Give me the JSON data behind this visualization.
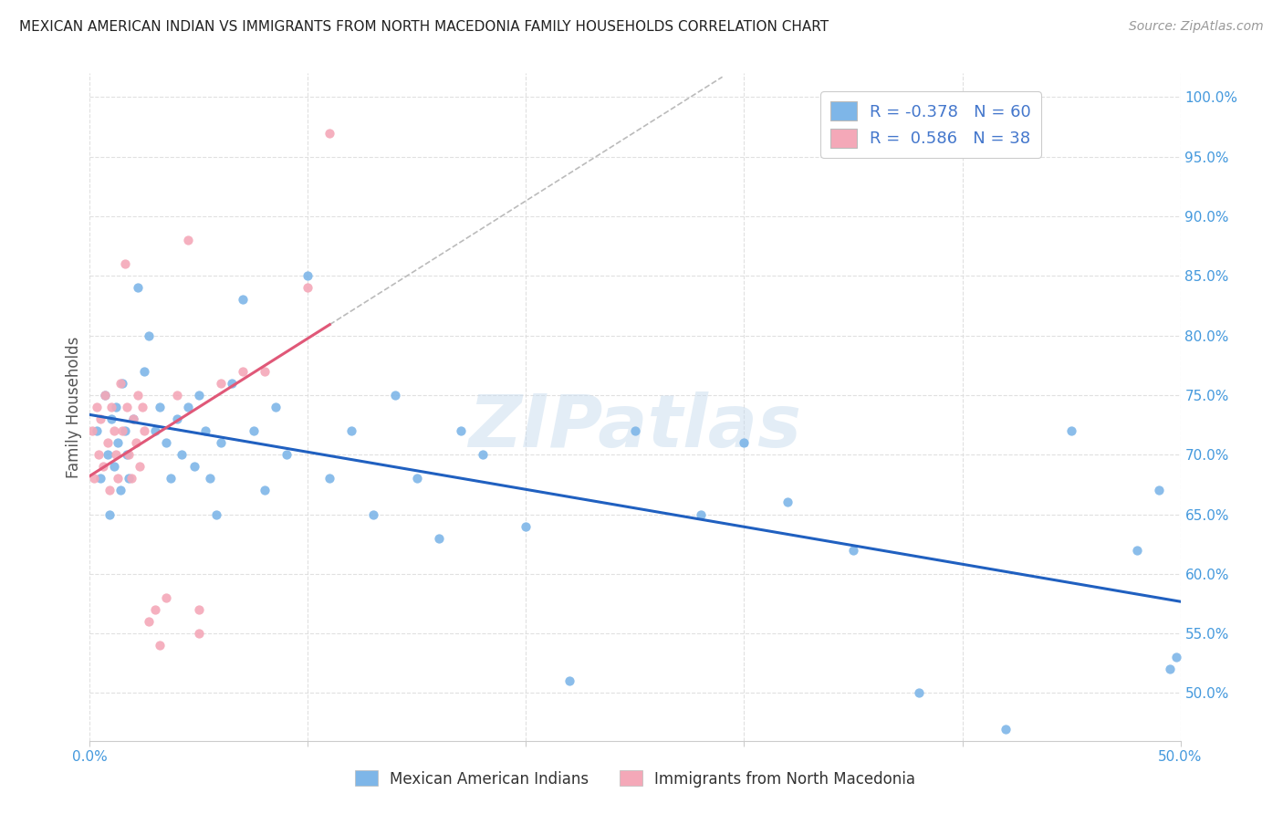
{
  "title": "MEXICAN AMERICAN INDIAN VS IMMIGRANTS FROM NORTH MACEDONIA FAMILY HOUSEHOLDS CORRELATION CHART",
  "source": "Source: ZipAtlas.com",
  "ylabel": "Family Households",
  "xlim": [
    0.0,
    0.5
  ],
  "ylim": [
    0.46,
    1.02
  ],
  "yticks": [
    0.5,
    0.55,
    0.6,
    0.65,
    0.7,
    0.75,
    0.8,
    0.85,
    0.9,
    0.95,
    1.0
  ],
  "ytick_labels": [
    "50.0%",
    "55.0%",
    "60.0%",
    "65.0%",
    "70.0%",
    "75.0%",
    "80.0%",
    "85.0%",
    "90.0%",
    "95.0%",
    "100.0%"
  ],
  "xticks": [
    0.0,
    0.1,
    0.2,
    0.3,
    0.4,
    0.5
  ],
  "xtick_labels": [
    "0.0%",
    "",
    "",
    "",
    "",
    "50.0%"
  ],
  "blue_color": "#7EB6E8",
  "pink_color": "#F4A8B8",
  "blue_line_color": "#2060C0",
  "pink_line_color": "#E05878",
  "gray_dash_color": "#BBBBBB",
  "legend_label1": "Mexican American Indians",
  "legend_label2": "Immigrants from North Macedonia",
  "watermark": "ZIPatlas",
  "blue_scatter_x": [
    0.003,
    0.005,
    0.007,
    0.008,
    0.009,
    0.01,
    0.011,
    0.012,
    0.013,
    0.014,
    0.015,
    0.016,
    0.017,
    0.018,
    0.02,
    0.022,
    0.025,
    0.027,
    0.03,
    0.032,
    0.035,
    0.037,
    0.04,
    0.042,
    0.045,
    0.048,
    0.05,
    0.053,
    0.055,
    0.058,
    0.06,
    0.065,
    0.07,
    0.075,
    0.08,
    0.085,
    0.09,
    0.1,
    0.11,
    0.12,
    0.13,
    0.14,
    0.15,
    0.16,
    0.17,
    0.18,
    0.2,
    0.22,
    0.25,
    0.28,
    0.3,
    0.32,
    0.35,
    0.38,
    0.42,
    0.45,
    0.48,
    0.49,
    0.495,
    0.498
  ],
  "blue_scatter_y": [
    0.72,
    0.68,
    0.75,
    0.7,
    0.65,
    0.73,
    0.69,
    0.74,
    0.71,
    0.67,
    0.76,
    0.72,
    0.7,
    0.68,
    0.73,
    0.84,
    0.77,
    0.8,
    0.72,
    0.74,
    0.71,
    0.68,
    0.73,
    0.7,
    0.74,
    0.69,
    0.75,
    0.72,
    0.68,
    0.65,
    0.71,
    0.76,
    0.83,
    0.72,
    0.67,
    0.74,
    0.7,
    0.85,
    0.68,
    0.72,
    0.65,
    0.75,
    0.68,
    0.63,
    0.72,
    0.7,
    0.64,
    0.51,
    0.72,
    0.65,
    0.71,
    0.66,
    0.62,
    0.5,
    0.47,
    0.72,
    0.62,
    0.67,
    0.52,
    0.53
  ],
  "pink_scatter_x": [
    0.001,
    0.002,
    0.003,
    0.004,
    0.005,
    0.006,
    0.007,
    0.008,
    0.009,
    0.01,
    0.011,
    0.012,
    0.013,
    0.014,
    0.015,
    0.016,
    0.017,
    0.018,
    0.019,
    0.02,
    0.021,
    0.022,
    0.023,
    0.024,
    0.025,
    0.027,
    0.03,
    0.032,
    0.035,
    0.04,
    0.045,
    0.05,
    0.06,
    0.07,
    0.08,
    0.1,
    0.11,
    0.05
  ],
  "pink_scatter_y": [
    0.72,
    0.68,
    0.74,
    0.7,
    0.73,
    0.69,
    0.75,
    0.71,
    0.67,
    0.74,
    0.72,
    0.7,
    0.68,
    0.76,
    0.72,
    0.86,
    0.74,
    0.7,
    0.68,
    0.73,
    0.71,
    0.75,
    0.69,
    0.74,
    0.72,
    0.56,
    0.57,
    0.54,
    0.58,
    0.75,
    0.88,
    0.57,
    0.76,
    0.77,
    0.77,
    0.84,
    0.97,
    0.55
  ],
  "legend_r1_text": "R = -0.378",
  "legend_n1_text": "N = 60",
  "legend_r2_text": "R =  0.586",
  "legend_n2_text": "N = 38",
  "legend_text_color": "#4477CC",
  "legend_r_color": "#222222",
  "title_fontsize": 11,
  "source_fontsize": 10,
  "tick_color": "#4499DD",
  "ylabel_color": "#555555",
  "grid_color": "#DDDDDD",
  "watermark_color": "#C8DCEE"
}
